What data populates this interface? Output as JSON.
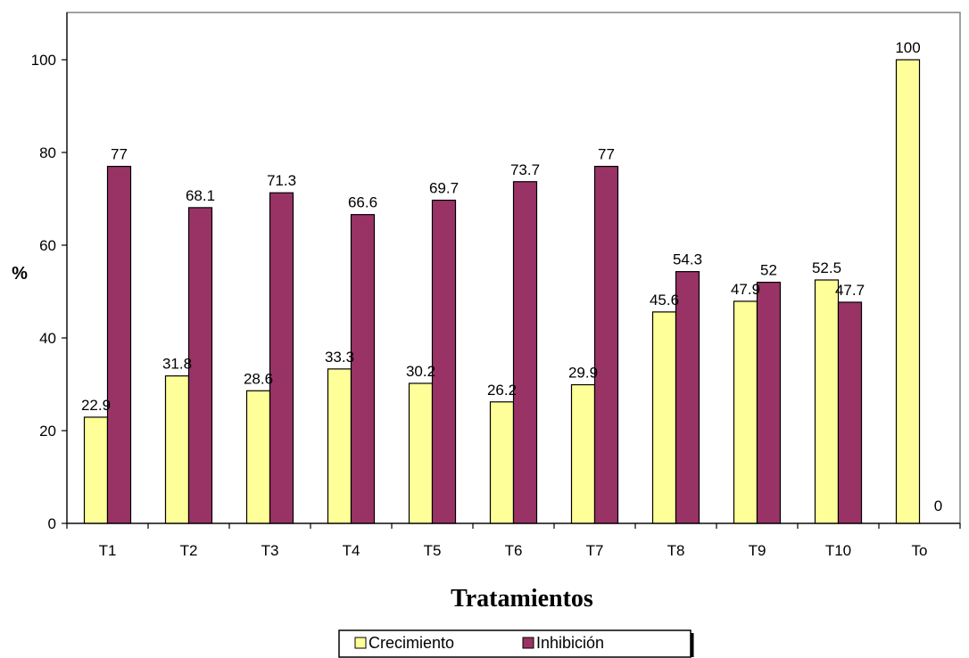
{
  "chart_data": {
    "type": "bar",
    "categories": [
      "T1",
      "T2",
      "T3",
      "T4",
      "T5",
      "T6",
      "T7",
      "T8",
      "T9",
      "T10",
      "To"
    ],
    "series": [
      {
        "name": "Crecimiento",
        "values": [
          22.9,
          31.8,
          28.6,
          33.3,
          30.2,
          26.2,
          29.9,
          45.6,
          47.9,
          52.5,
          100
        ],
        "color": "#ffff99"
      },
      {
        "name": "Inhibición",
        "values": [
          77,
          68.1,
          71.3,
          66.6,
          69.7,
          73.7,
          77,
          54.3,
          52,
          47.7,
          0
        ],
        "color": "#993366"
      }
    ],
    "data_labels": {
      "Crecimiento": [
        "22.9",
        "31.8",
        "28.6",
        "33.3",
        "30.2",
        "26.2",
        "29.9",
        "45.6",
        "47.9",
        "52.5",
        "100"
      ],
      "Inhibición": [
        "77",
        "68.1",
        "71.3",
        "66.6",
        "69.7",
        "73.7",
        "77",
        "54.3",
        "52",
        "47.7",
        "0"
      ]
    },
    "title": "",
    "xlabel": "Tratamientos",
    "ylabel": "%",
    "ylim": [
      0,
      100
    ],
    "yticks": [
      "0",
      "20",
      "40",
      "60",
      "80",
      "100"
    ],
    "grid": false,
    "legend_position": "bottom"
  }
}
